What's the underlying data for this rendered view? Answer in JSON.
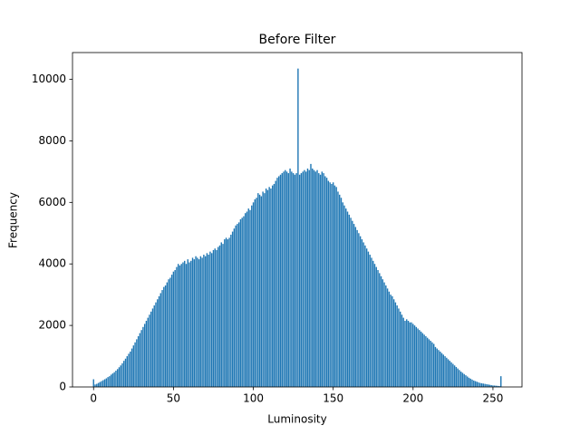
{
  "chart_data": {
    "type": "bar",
    "title": "Before Filter",
    "x_label": "Luminosity",
    "y_label": "Frequency",
    "color": "#1f77b4",
    "x": [
      0,
      1,
      2,
      3,
      4,
      5,
      6,
      7,
      8,
      9,
      10,
      11,
      12,
      13,
      14,
      15,
      16,
      17,
      18,
      19,
      20,
      21,
      22,
      23,
      24,
      25,
      26,
      27,
      28,
      29,
      30,
      31,
      32,
      33,
      34,
      35,
      36,
      37,
      38,
      39,
      40,
      41,
      42,
      43,
      44,
      45,
      46,
      47,
      48,
      49,
      50,
      51,
      52,
      53,
      54,
      55,
      56,
      57,
      58,
      59,
      60,
      61,
      62,
      63,
      64,
      65,
      66,
      67,
      68,
      69,
      70,
      71,
      72,
      73,
      74,
      75,
      76,
      77,
      78,
      79,
      80,
      81,
      82,
      83,
      84,
      85,
      86,
      87,
      88,
      89,
      90,
      91,
      92,
      93,
      94,
      95,
      96,
      97,
      98,
      99,
      100,
      101,
      102,
      103,
      104,
      105,
      106,
      107,
      108,
      109,
      110,
      111,
      112,
      113,
      114,
      115,
      116,
      117,
      118,
      119,
      120,
      121,
      122,
      123,
      124,
      125,
      126,
      127,
      128,
      129,
      130,
      131,
      132,
      133,
      134,
      135,
      136,
      137,
      138,
      139,
      140,
      141,
      142,
      143,
      144,
      145,
      146,
      147,
      148,
      149,
      150,
      151,
      152,
      153,
      154,
      155,
      156,
      157,
      158,
      159,
      160,
      161,
      162,
      163,
      164,
      165,
      166,
      167,
      168,
      169,
      170,
      171,
      172,
      173,
      174,
      175,
      176,
      177,
      178,
      179,
      180,
      181,
      182,
      183,
      184,
      185,
      186,
      187,
      188,
      189,
      190,
      191,
      192,
      193,
      194,
      195,
      196,
      197,
      198,
      199,
      200,
      201,
      202,
      203,
      204,
      205,
      206,
      207,
      208,
      209,
      210,
      211,
      212,
      213,
      214,
      215,
      216,
      217,
      218,
      219,
      220,
      221,
      222,
      223,
      224,
      225,
      226,
      227,
      228,
      229,
      230,
      231,
      232,
      233,
      234,
      235,
      236,
      237,
      238,
      239,
      240,
      241,
      242,
      243,
      244,
      245,
      246,
      247,
      248,
      249,
      250,
      251,
      252,
      253,
      254,
      255
    ],
    "values": [
      250,
      80,
      100,
      130,
      160,
      190,
      220,
      250,
      280,
      320,
      350,
      400,
      440,
      480,
      530,
      580,
      640,
      700,
      770,
      850,
      920,
      1000,
      1080,
      1150,
      1250,
      1350,
      1450,
      1550,
      1650,
      1750,
      1850,
      1950,
      2050,
      2150,
      2250,
      2350,
      2450,
      2550,
      2650,
      2750,
      2850,
      2950,
      3050,
      3150,
      3250,
      3300,
      3400,
      3500,
      3550,
      3650,
      3750,
      3800,
      3900,
      4000,
      3950,
      4000,
      4050,
      4100,
      4000,
      4150,
      4050,
      4100,
      4200,
      4150,
      4250,
      4200,
      4150,
      4250,
      4200,
      4300,
      4250,
      4350,
      4300,
      4400,
      4350,
      4450,
      4500,
      4450,
      4550,
      4600,
      4700,
      4650,
      4800,
      4850,
      4800,
      4850,
      4950,
      5050,
      5150,
      5250,
      5300,
      5350,
      5450,
      5500,
      5550,
      5650,
      5700,
      5800,
      5750,
      5900,
      6000,
      6100,
      6150,
      6300,
      6250,
      6200,
      6350,
      6300,
      6450,
      6400,
      6500,
      6450,
      6550,
      6600,
      6700,
      6800,
      6850,
      6900,
      6950,
      7000,
      7050,
      7000,
      6950,
      7100,
      7000,
      6950,
      6900,
      6950,
      10350,
      6900,
      6950,
      7000,
      7050,
      7000,
      7100,
      7050,
      7250,
      7100,
      7050,
      7000,
      7050,
      6950,
      6900,
      7000,
      6950,
      6850,
      6800,
      6700,
      6650,
      6600,
      6650,
      6550,
      6500,
      6350,
      6250,
      6150,
      6000,
      5900,
      5800,
      5700,
      5600,
      5500,
      5400,
      5300,
      5200,
      5100,
      5000,
      4900,
      4800,
      4700,
      4600,
      4500,
      4400,
      4300,
      4200,
      4100,
      4000,
      3900,
      3800,
      3700,
      3600,
      3500,
      3400,
      3300,
      3200,
      3100,
      3000,
      2950,
      2850,
      2750,
      2650,
      2550,
      2450,
      2350,
      2250,
      2150,
      2200,
      2150,
      2100,
      2100,
      2050,
      2000,
      1950,
      1900,
      1850,
      1800,
      1750,
      1700,
      1650,
      1600,
      1550,
      1500,
      1450,
      1400,
      1300,
      1250,
      1200,
      1150,
      1100,
      1050,
      1000,
      950,
      900,
      850,
      800,
      750,
      700,
      650,
      600,
      550,
      500,
      460,
      420,
      380,
      340,
      300,
      270,
      240,
      210,
      190,
      170,
      150,
      130,
      120,
      110,
      100,
      90,
      80,
      70,
      60,
      50,
      45,
      40,
      35,
      30,
      350
    ],
    "xlim": [
      -13.19,
      268.19
    ],
    "xticks": [
      0,
      50,
      100,
      150,
      200,
      250
    ],
    "ylim": [
      0,
      10870
    ],
    "yticks": [
      0,
      2000,
      4000,
      6000,
      8000,
      10000
    ]
  }
}
